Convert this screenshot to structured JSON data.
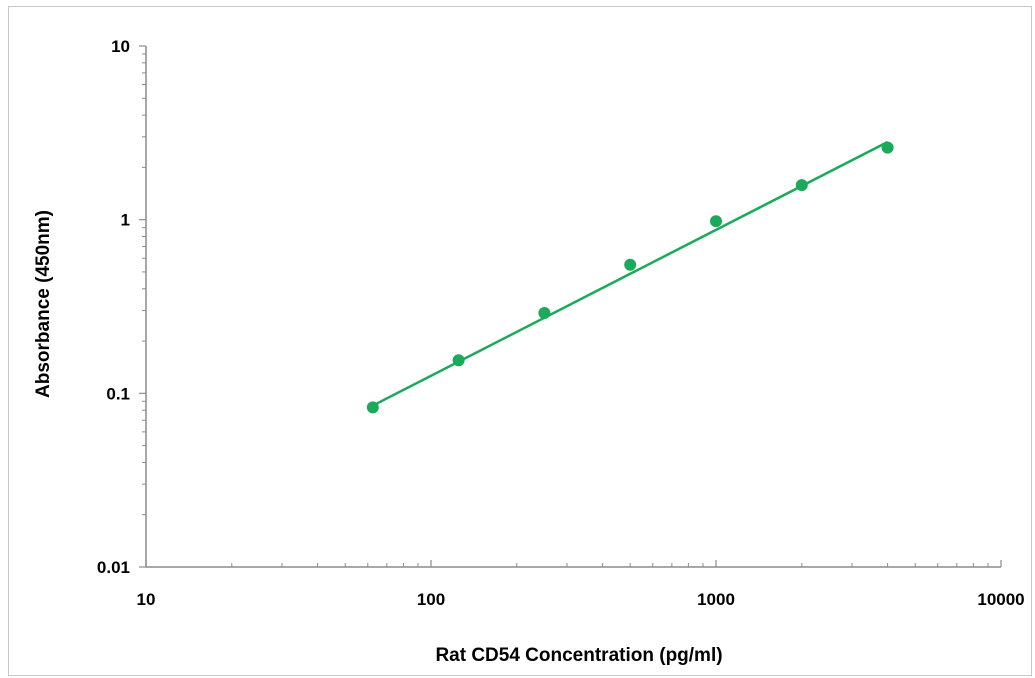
{
  "chart_data": {
    "type": "scatter",
    "title": "",
    "xlabel": "Rat CD54 Concentration (pg/ml)",
    "ylabel": "Absorbance (450nm)",
    "x_scale": "log",
    "y_scale": "log",
    "xlim": [
      10,
      10000
    ],
    "ylim": [
      0.01,
      10
    ],
    "x_tick_labels": [
      "10",
      "100",
      "1000",
      "10000"
    ],
    "y_tick_labels": [
      "10",
      "1",
      "0.1",
      "0.01"
    ],
    "grid": false,
    "legend": "none",
    "colors": {
      "series": "#1aaa5a",
      "axis": "#8c8c8c",
      "text": "#000000"
    },
    "series": [
      {
        "x": [
          62.5,
          125,
          250,
          500,
          1000,
          2000,
          4000
        ],
        "y": [
          0.083,
          0.155,
          0.29,
          0.55,
          0.98,
          1.58,
          2.6
        ]
      }
    ],
    "trendline": {
      "type": "power",
      "x_range": [
        62.5,
        4000
      ],
      "y_at_start": 0.085,
      "y_at_end": 2.8
    }
  }
}
